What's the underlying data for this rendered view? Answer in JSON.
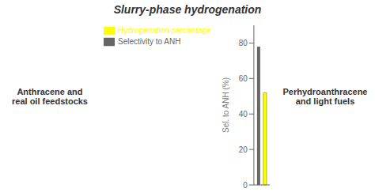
{
  "chart_data": {
    "type": "bar",
    "categories": [
      null
    ],
    "series": [
      {
        "name": "Selectivity to ANH",
        "color": "#666666",
        "values": [
          78
        ]
      },
      {
        "name": "Hydrogenation percentage",
        "color": "#ffff00",
        "values": [
          52
        ]
      }
    ],
    "ylabel": "Sel. to ANH (%)",
    "ylim": [
      0,
      90
    ],
    "yticks": [
      0,
      20,
      40,
      60,
      80
    ],
    "legend": "upper left",
    "tick_labels": "y",
    "annotations": [
      "Anthracene and\nreal oil feedstocks",
      "Perhydroanthracene\nand light fuels",
      "Slurry-phase hydrogenation"
    ]
  }
}
